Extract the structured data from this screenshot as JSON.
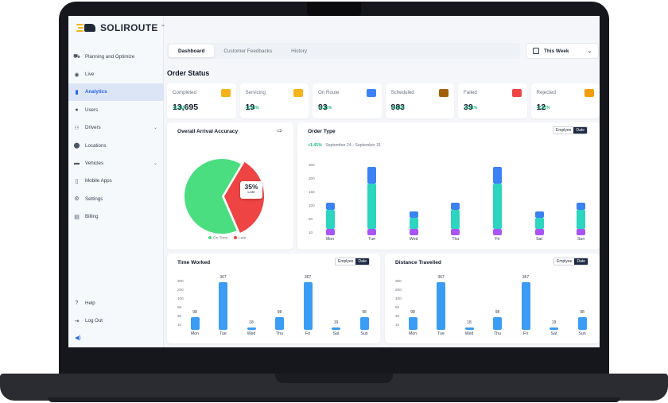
{
  "brand": {
    "name": "SOLIROUTE",
    "tm": "™"
  },
  "sidebar": {
    "items": [
      {
        "label": "Planning and Optimize",
        "icon": "route-icon"
      },
      {
        "label": "Live",
        "icon": "live-signal-icon"
      },
      {
        "label": "Analytics",
        "icon": "analytics-icon",
        "active": true
      },
      {
        "label": "Users",
        "icon": "user-icon"
      },
      {
        "label": "Drivers",
        "icon": "driver-icon",
        "has_chevron": true
      },
      {
        "label": "Locations",
        "icon": "location-icon"
      },
      {
        "label": "Vehicles",
        "icon": "truck-icon",
        "has_chevron": true
      },
      {
        "label": "Mobile Apps",
        "icon": "mobile-icon"
      },
      {
        "label": "Settings",
        "icon": "settings-icon"
      },
      {
        "label": "Billing",
        "icon": "billing-icon"
      }
    ],
    "bottom": [
      {
        "label": "Help",
        "icon": "help-icon"
      },
      {
        "label": "Log Out",
        "icon": "logout-icon"
      }
    ]
  },
  "tabs": [
    "Dashboard",
    "Customer Feedbacks",
    "History"
  ],
  "active_tab": 0,
  "week_selector": {
    "label": "This Week"
  },
  "order_status": {
    "title": "Order Status",
    "cards": [
      {
        "label": "Completed",
        "value": "13,695",
        "change": "+2.51%",
        "icon_color": "#f5b31c"
      },
      {
        "label": "Servicing",
        "value": "19",
        "change": "+2.51%",
        "icon_color": "#f5b31c"
      },
      {
        "label": "On Route",
        "value": "93",
        "change": "+2.51%",
        "icon_color": "#3b82f6"
      },
      {
        "label": "Scheduled",
        "value": "983",
        "change": "+2.51%",
        "icon_color": "#a16207"
      },
      {
        "label": "Failed",
        "value": "39",
        "change": "+2.51%",
        "icon_color": "#ef4444"
      },
      {
        "label": "Rejected",
        "value": "12",
        "change": "+2.51%",
        "icon_color": "#f59e0b"
      }
    ]
  },
  "arrival": {
    "title": "Overall Arrival Accuracy",
    "callout_value": "35%",
    "callout_label": "Late",
    "legend": [
      "On Time",
      "Late"
    ]
  },
  "order_type": {
    "title": "Order Type",
    "change": "+1.41%",
    "range": "September 24 - September 31",
    "toggle": [
      "Emplyee",
      "Date"
    ]
  },
  "time_worked": {
    "title": "Time Worked",
    "toggle": [
      "Emplyee",
      "Date"
    ]
  },
  "distance": {
    "title": "Distance Travelled",
    "toggle": [
      "Emplyee",
      "Date"
    ]
  },
  "chart_data": [
    {
      "type": "pie",
      "title": "Overall Arrival Accuracy",
      "slices": [
        {
          "label": "On Time",
          "value": 65,
          "color": "#4ade80"
        },
        {
          "label": "Late",
          "value": 35,
          "color": "#ef4444"
        }
      ]
    },
    {
      "type": "bar",
      "title": "Order Type",
      "categories": [
        "Mon",
        "Tue",
        "Wed",
        "Thu",
        "Fri",
        "Sat",
        "Sun"
      ],
      "yticks": [
        "300",
        "200",
        "150",
        "100",
        "50",
        "10"
      ],
      "series": [
        {
          "values": [
            8,
            8,
            8,
            8,
            8,
            8,
            8
          ],
          "color": "#a855f7"
        },
        {
          "values": [
            25,
            60,
            15,
            25,
            60,
            15,
            25
          ],
          "color": "#2dd4bf"
        },
        {
          "values": [
            10,
            22,
            8,
            10,
            22,
            8,
            10
          ],
          "color": "#3b82f6"
        }
      ],
      "stacked": true
    },
    {
      "type": "bar",
      "title": "Time Worked",
      "categories": [
        "Mon",
        "Tue",
        "Wed",
        "Thu",
        "Fri",
        "Sat",
        "Sun"
      ],
      "yticks": [
        "300",
        "200",
        "100",
        "50",
        "30",
        "10"
      ],
      "values": [
        98,
        367,
        18,
        98,
        367,
        19,
        98
      ],
      "data_labels": [
        "98",
        "367",
        "18",
        "98",
        "367",
        "19",
        "98"
      ],
      "color": "#3b9cf5"
    },
    {
      "type": "bar",
      "title": "Distance Travelled",
      "categories": [
        "Mon",
        "Tue",
        "Wed",
        "Thu",
        "Fri",
        "Sat",
        "Sun"
      ],
      "yticks": [
        "300",
        "200",
        "100",
        "50",
        "30",
        "10"
      ],
      "values": [
        98,
        367,
        18,
        98,
        367,
        19,
        98
      ],
      "data_labels": [
        "98",
        "367",
        "18",
        "98",
        "367",
        "19",
        "98"
      ],
      "color": "#3b9cf5"
    }
  ]
}
